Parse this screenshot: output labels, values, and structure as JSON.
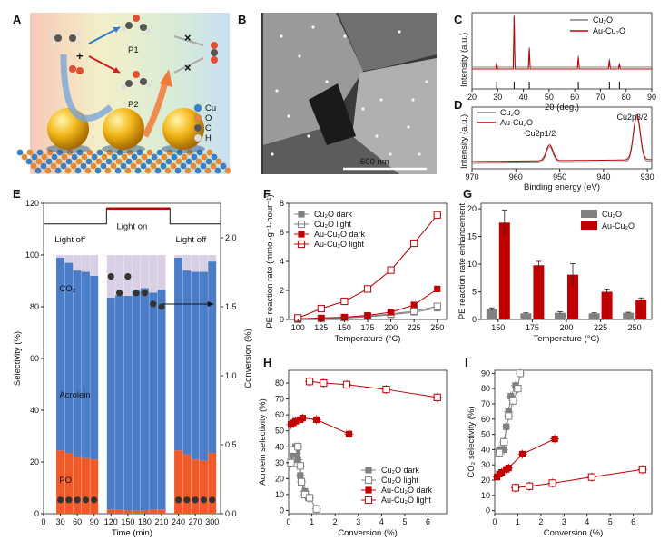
{
  "panel_labels": [
    "A",
    "B",
    "C",
    "D",
    "E",
    "F",
    "G",
    "H",
    "I"
  ],
  "colors": {
    "red": "#c00000",
    "gray": "#808080",
    "blue": "#4a7cc7",
    "orange": "#f05a28",
    "lavender": "#d9d0e6",
    "dark": "#333333"
  },
  "panel_a": {
    "atom_legend": [
      "Cu",
      "O",
      "C",
      "H"
    ],
    "labels": [
      "P1",
      "P2"
    ],
    "icons": [
      "ethylene-molecule-icon",
      "oxygen-molecule-icon",
      "co2-molecule-icon",
      "gold-nanoparticle-icon",
      "cu2o-surface-icon"
    ]
  },
  "panel_b": {
    "scale_bar": "500 nm"
  },
  "chart_data": [
    {
      "panel": "C",
      "type": "line",
      "title": "",
      "xlabel": "2θ (deg.)",
      "ylabel": "Intensity (a.u.)",
      "xlim": [
        20,
        90
      ],
      "xticks": [
        "20",
        "30",
        "40",
        "50",
        "60",
        "70",
        "80",
        "90"
      ],
      "legend": [
        "Cu₂O",
        "Au-Cu₂O"
      ],
      "peaks": [
        {
          "x": 29.6,
          "h": 0.1
        },
        {
          "x": 36.4,
          "h": 1.0
        },
        {
          "x": 42.3,
          "h": 0.38
        },
        {
          "x": 61.4,
          "h": 0.22
        },
        {
          "x": 73.5,
          "h": 0.16
        },
        {
          "x": 77.4,
          "h": 0.08
        }
      ],
      "reference_lines": [
        29.6,
        36.4,
        42.3,
        61.4,
        73.5,
        77.4
      ]
    },
    {
      "panel": "D",
      "type": "line",
      "title": "",
      "xlabel": "Binding energy (eV)",
      "ylabel": "Intensity (a.u.)",
      "xlim": [
        970,
        929
      ],
      "xticks": [
        "970",
        "960",
        "950",
        "940",
        "930"
      ],
      "legend": [
        "Cu₂O",
        "Au-Cu₂O"
      ],
      "annotations": [
        "Cu2p1/2",
        "Cu2p3/2"
      ],
      "peaks": [
        {
          "x": 952.3,
          "h": 0.35
        },
        {
          "x": 932.4,
          "h": 1.0
        }
      ]
    },
    {
      "panel": "E",
      "type": "bar",
      "title": "",
      "xlabel": "Time (min)",
      "ylabel": "Selectivity (%)",
      "ylabel2": "Conversion (%)",
      "xlim": [
        0,
        315
      ],
      "ylim": [
        0,
        120
      ],
      "ylim2": [
        0,
        2.25
      ],
      "xticks": [
        "0",
        "30",
        "60",
        "90",
        "120",
        "150",
        "180",
        "210",
        "240",
        "270",
        "300"
      ],
      "yticks": [
        "0",
        "20",
        "40",
        "60",
        "80",
        "100",
        "120"
      ],
      "yticks2": [
        "0.0",
        "0.5",
        "1.0",
        "1.5",
        "2.0"
      ],
      "light_labels": [
        "Light off",
        "Light on",
        "Light off"
      ],
      "component_labels": [
        "CO₂",
        "Acrolein",
        "PO"
      ],
      "x": [
        30,
        45,
        60,
        75,
        90,
        120,
        135,
        150,
        165,
        180,
        195,
        210,
        240,
        255,
        270,
        285,
        300
      ],
      "light": [
        0,
        0,
        0,
        0,
        0,
        1,
        1,
        1,
        1,
        1,
        1,
        1,
        0,
        0,
        0,
        0,
        0
      ],
      "po": [
        24.5,
        23.5,
        22,
        21.5,
        21,
        1.5,
        1.5,
        1.2,
        1.2,
        1.2,
        1.5,
        1.5,
        24.5,
        23,
        21,
        20.5,
        23.5
      ],
      "acrolein": [
        74.5,
        73.5,
        72,
        72,
        71,
        82,
        83,
        83,
        85,
        86,
        84,
        85,
        74.5,
        71,
        72.5,
        73,
        74
      ],
      "conversion": [
        0.1,
        0.1,
        0.1,
        0.1,
        0.1,
        1.72,
        1.6,
        1.72,
        1.6,
        1.6,
        1.52,
        1.5,
        0.1,
        0.1,
        0.1,
        0.1,
        0.1
      ]
    },
    {
      "panel": "F",
      "type": "line",
      "title": "",
      "xlabel": "Temperature (°C)",
      "ylabel": "PE reaction rate (mmol·g⁻¹·hour⁻¹)",
      "xlim": [
        90,
        260
      ],
      "ylim": [
        0,
        8
      ],
      "xticks": [
        "100",
        "125",
        "150",
        "175",
        "200",
        "225",
        "250"
      ],
      "yticks": [
        "0",
        "2",
        "4",
        "6",
        "8"
      ],
      "x": [
        100,
        125,
        150,
        175,
        200,
        225,
        250
      ],
      "series": [
        {
          "name": "Cu₂O dark",
          "values": [
            0.02,
            0.05,
            0.1,
            0.18,
            0.32,
            0.5,
            0.78
          ]
        },
        {
          "name": "Cu₂O light",
          "values": [
            0.02,
            0.06,
            0.12,
            0.22,
            0.38,
            0.58,
            0.9
          ]
        },
        {
          "name": "Au-Cu₂O dark",
          "values": [
            0.05,
            0.1,
            0.16,
            0.28,
            0.5,
            1.0,
            2.1
          ]
        },
        {
          "name": "Au-Cu₂O light",
          "values": [
            0.1,
            0.75,
            1.25,
            2.1,
            3.4,
            5.25,
            7.2
          ]
        }
      ]
    },
    {
      "panel": "G",
      "type": "bar",
      "title": "",
      "xlabel": "Temperature (°C)",
      "ylabel": "PE reaction rate enhancement",
      "ylim": [
        0,
        21
      ],
      "categories": [
        "150",
        "175",
        "200",
        "225",
        "250"
      ],
      "yticks": [
        "0",
        "5",
        "10",
        "15",
        "20"
      ],
      "series": [
        {
          "name": "Cu₂O",
          "values": [
            1.9,
            1.1,
            1.2,
            1.1,
            1.2
          ],
          "errors": [
            0.2,
            0.1,
            0.2,
            0.1,
            0.1
          ]
        },
        {
          "name": "Au-Cu₂O",
          "values": [
            17.5,
            9.8,
            8.1,
            5.0,
            3.6
          ],
          "errors": [
            2.3,
            0.7,
            2.0,
            0.5,
            0.3
          ]
        }
      ]
    },
    {
      "panel": "H",
      "type": "scatter",
      "title": "",
      "xlabel": "Conversion (%)",
      "ylabel": "Acrolein selectivity (%)",
      "xlim": [
        0,
        6.8
      ],
      "ylim": [
        -2,
        88
      ],
      "xticks": [
        "0",
        "1",
        "2",
        "3",
        "4",
        "5",
        "6"
      ],
      "yticks": [
        "0",
        "10",
        "20",
        "30",
        "40",
        "50",
        "60",
        "70",
        "80"
      ],
      "series": [
        {
          "name": "Cu₂O dark",
          "x": [
            0.1,
            0.2,
            0.3,
            0.35,
            0.4,
            0.5,
            0.7,
            0.85
          ],
          "y": [
            30,
            35,
            40,
            36,
            32,
            22,
            12,
            8
          ]
        },
        {
          "name": "Cu₂O light",
          "x": [
            0.1,
            0.2,
            0.4,
            0.5,
            0.55,
            0.7,
            0.9,
            1.2
          ],
          "y": [
            30,
            38,
            40,
            28,
            18,
            10,
            8,
            1
          ]
        },
        {
          "name": "Au-Cu₂O dark",
          "x": [
            0.1,
            0.2,
            0.3,
            0.5,
            0.6,
            1.2,
            2.6
          ],
          "y": [
            54,
            55,
            56,
            57,
            58,
            57,
            48
          ]
        },
        {
          "name": "Au-Cu₂O light",
          "x": [
            0.9,
            1.5,
            2.5,
            4.2,
            6.4
          ],
          "y": [
            81,
            80,
            79,
            76,
            71
          ]
        }
      ]
    },
    {
      "panel": "I",
      "type": "scatter",
      "title": "",
      "xlabel": "Conversion (%)",
      "ylabel": "CO₂ selectivity (%)",
      "xlim": [
        0,
        6.8
      ],
      "ylim": [
        -2,
        92
      ],
      "xticks": [
        "0",
        "1",
        "2",
        "3",
        "4",
        "5",
        "6"
      ],
      "yticks": [
        "0",
        "10",
        "20",
        "30",
        "40",
        "50",
        "60",
        "70",
        "80",
        "90"
      ],
      "series": [
        {
          "name": "Cu₂O dark",
          "x": [
            0.2,
            0.4,
            0.5,
            0.6,
            0.7,
            0.9
          ],
          "y": [
            40,
            40,
            55,
            65,
            75,
            82
          ]
        },
        {
          "name": "Cu₂O light",
          "x": [
            0.2,
            0.4,
            0.6,
            0.8,
            1.0,
            1.1
          ],
          "y": [
            38,
            45,
            62,
            72,
            80,
            90
          ]
        },
        {
          "name": "Au-Cu₂O dark",
          "x": [
            0.1,
            0.2,
            0.3,
            0.5,
            0.6,
            1.2,
            2.6
          ],
          "y": [
            22,
            24,
            25,
            27,
            28,
            37,
            47
          ]
        },
        {
          "name": "Au-Cu₂O light",
          "x": [
            0.9,
            1.5,
            2.5,
            4.2,
            6.4
          ],
          "y": [
            15,
            16,
            18,
            22,
            27
          ]
        }
      ]
    }
  ]
}
